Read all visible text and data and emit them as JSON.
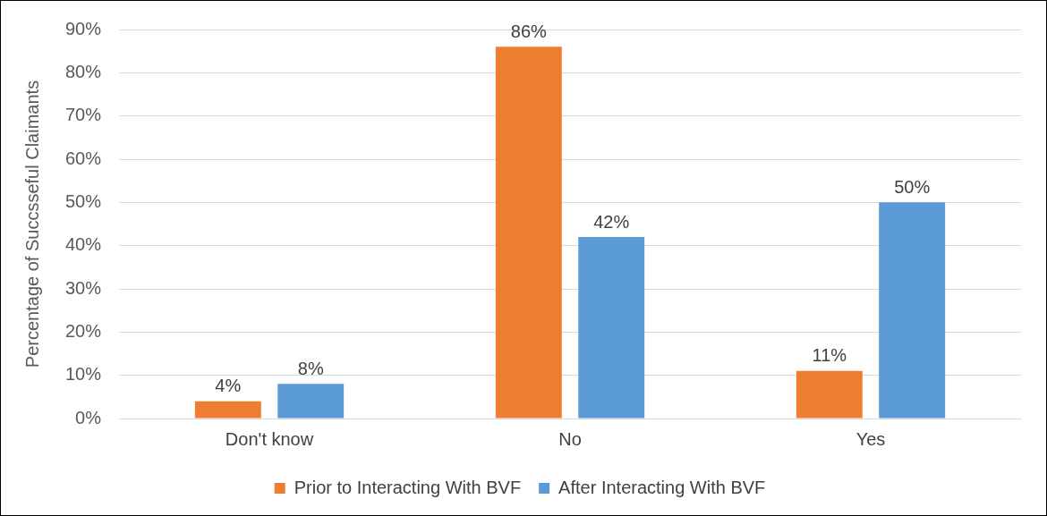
{
  "chart_data": {
    "type": "bar",
    "ylabel": "Percentage of Succsseful Claimants",
    "categories": [
      "Don't know",
      "No",
      "Yes"
    ],
    "series": [
      {
        "name": "Prior to Interacting With BVF",
        "color": "#ed7d31",
        "values": [
          4,
          86,
          11
        ],
        "value_labels": [
          "4%",
          "86%",
          "11%"
        ]
      },
      {
        "name": "After Interacting With BVF",
        "color": "#5b9bd5",
        "values": [
          8,
          42,
          50
        ],
        "value_labels": [
          "8%",
          "42%",
          "50%"
        ]
      }
    ],
    "ylim": [
      0,
      90
    ],
    "yticks": [
      {
        "value": 0,
        "label": "0%"
      },
      {
        "value": 10,
        "label": "10%"
      },
      {
        "value": 20,
        "label": "20%"
      },
      {
        "value": 30,
        "label": "30%"
      },
      {
        "value": 40,
        "label": "40%"
      },
      {
        "value": 50,
        "label": "50%"
      },
      {
        "value": 60,
        "label": "60%"
      },
      {
        "value": 70,
        "label": "70%"
      },
      {
        "value": 80,
        "label": "80%"
      },
      {
        "value": 90,
        "label": "90%"
      }
    ],
    "grid": "y",
    "legend": "bottom"
  }
}
